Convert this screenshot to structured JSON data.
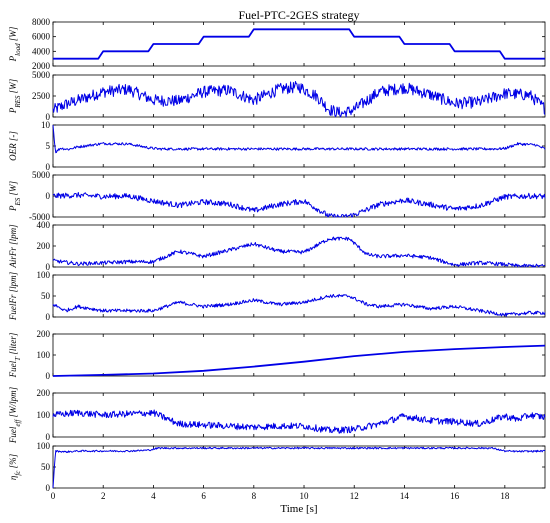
{
  "chart_data": {
    "type": "line",
    "title": "Fuel-PTC-2GES strategy",
    "xlabel": "Time [s]",
    "xlim": [
      0,
      19.6
    ],
    "xticks": [
      "0",
      "2",
      "4",
      "6",
      "8",
      "10",
      "12",
      "14",
      "16",
      "18"
    ],
    "line_color": "#0000e6",
    "grid": false,
    "panels": [
      {
        "ylabel": "P_load [W]",
        "ylim": [
          2000,
          8000
        ],
        "yticks": [
          "2000",
          "4000",
          "6000",
          "8000"
        ],
        "x": [
          0,
          1.8,
          2.0,
          3.8,
          4.0,
          5.8,
          6.0,
          7.8,
          8.0,
          11.8,
          12.0,
          13.8,
          14.0,
          15.8,
          16.0,
          17.8,
          18.0,
          19.6
        ],
        "y": [
          3000,
          3000,
          4000,
          4000,
          5000,
          5000,
          6000,
          6000,
          7000,
          7000,
          6000,
          6000,
          5000,
          5000,
          4000,
          4000,
          3000,
          3000
        ],
        "noise": 0
      },
      {
        "ylabel": "P_RES [W]",
        "ylim": [
          0,
          5000
        ],
        "yticks": [
          "0",
          "2500",
          "5000"
        ],
        "x": [
          0,
          0.5,
          1,
          2,
          3,
          4,
          5,
          6,
          7,
          8,
          9,
          9.8,
          10.5,
          11,
          11.5,
          12,
          13,
          14,
          15,
          16,
          17,
          18,
          19,
          19.6
        ],
        "y": [
          800,
          1500,
          2000,
          3000,
          3300,
          2000,
          1900,
          3000,
          3200,
          2000,
          3300,
          3600,
          2500,
          900,
          400,
          900,
          3000,
          3500,
          2700,
          1600,
          1800,
          2800,
          2600,
          1000
        ],
        "noise": 1400
      },
      {
        "ylabel": "OER [-]",
        "ylim": [
          0,
          10
        ],
        "yticks": [
          "0",
          "5",
          "10"
        ],
        "x": [
          0,
          0.1,
          0.3,
          0.6,
          1,
          2,
          3,
          3.8,
          4.2,
          17.5,
          18.0,
          18.5,
          19.2,
          19.6
        ],
        "y": [
          10,
          3.5,
          4.5,
          4.2,
          4.8,
          5.6,
          5.5,
          4.6,
          4.3,
          4.3,
          4.4,
          5.5,
          5.3,
          4.3
        ],
        "noise": 0.6
      },
      {
        "ylabel": "P_ES [W]",
        "ylim": [
          -5000,
          5000
        ],
        "yticks": [
          "-5000",
          "0",
          "5000"
        ],
        "x": [
          0,
          1,
          2,
          3,
          4,
          5,
          6,
          7,
          8,
          9,
          10,
          11,
          11.5,
          12,
          13,
          14,
          15,
          16,
          17,
          18,
          19,
          19.6
        ],
        "y": [
          0,
          200,
          -100,
          0,
          -1200,
          -2200,
          -1400,
          -1900,
          -3500,
          -2000,
          -1200,
          -4800,
          -5000,
          -4500,
          -2000,
          -1000,
          -2000,
          -3100,
          -2300,
          -200,
          0,
          -100
        ],
        "noise": 1300
      },
      {
        "ylabel": "AirFr [lpm]",
        "ylim": [
          0,
          400
        ],
        "yticks": [
          "0",
          "200",
          "400"
        ],
        "x": [
          0,
          1,
          2,
          3,
          4,
          5,
          6,
          7,
          8,
          9,
          10,
          11,
          11.8,
          12.5,
          13,
          14,
          15,
          16,
          17,
          18,
          18.5,
          19.6
        ],
        "y": [
          60,
          30,
          40,
          50,
          50,
          150,
          100,
          160,
          220,
          150,
          140,
          270,
          270,
          120,
          100,
          110,
          90,
          20,
          40,
          25,
          10,
          10
        ],
        "noise": 35
      },
      {
        "ylabel": "FuelFr [lpm]",
        "ylim": [
          0,
          100
        ],
        "yticks": [
          "0",
          "50",
          "100"
        ],
        "x": [
          0,
          0.5,
          1,
          2,
          3,
          4,
          5,
          6,
          7,
          8,
          9,
          10,
          11,
          11.8,
          12.5,
          13,
          14,
          15,
          16,
          17,
          18,
          19,
          19.6
        ],
        "y": [
          30,
          15,
          25,
          15,
          15,
          15,
          35,
          25,
          30,
          40,
          30,
          35,
          50,
          50,
          30,
          25,
          30,
          20,
          25,
          15,
          5,
          10,
          10
        ],
        "noise": 8
      },
      {
        "ylabel": "Fuel_T [liter]",
        "ylim": [
          0,
          200
        ],
        "yticks": [
          "0",
          "100",
          "200"
        ],
        "x": [
          0,
          2,
          4,
          6,
          8,
          10,
          12,
          14,
          16,
          18,
          19.6
        ],
        "y": [
          0,
          5,
          12,
          25,
          45,
          68,
          95,
          115,
          128,
          138,
          145
        ],
        "noise": 0
      },
      {
        "ylabel": "Fuel_eff [W/lpm]",
        "ylim": [
          0,
          200
        ],
        "yticks": [
          "0",
          "100",
          "200"
        ],
        "x": [
          0,
          1,
          2,
          3,
          4,
          5,
          6,
          7,
          8,
          9,
          10,
          11,
          12,
          13,
          14,
          15,
          16,
          17,
          18,
          18.5,
          19,
          19.6
        ],
        "y": [
          100,
          110,
          100,
          105,
          110,
          60,
          55,
          50,
          45,
          50,
          50,
          30,
          35,
          60,
          95,
          75,
          70,
          60,
          95,
          80,
          100,
          90
        ],
        "noise": 30
      },
      {
        "ylabel": "η_fc [%]",
        "ylim": [
          0,
          100
        ],
        "yticks": [
          "0",
          "50",
          "100"
        ],
        "x": [
          0,
          0.1,
          0.5,
          1,
          3,
          3.8,
          4.2,
          17.5,
          18,
          18.5,
          19.6
        ],
        "y": [
          0,
          88,
          86,
          88,
          88,
          90,
          95,
          95,
          88,
          87,
          88
        ],
        "noise": 4
      }
    ]
  }
}
